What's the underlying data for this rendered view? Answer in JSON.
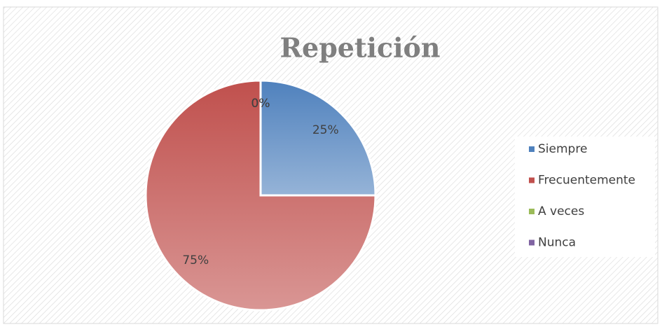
{
  "chart_data": {
    "type": "pie",
    "title": "Repetición",
    "categories": [
      "Siempre",
      "Frecuentemente",
      "A veces",
      "Nunca"
    ],
    "values": [
      25,
      75,
      0,
      0
    ],
    "value_labels": [
      "25%",
      "75%",
      "0%",
      "0%"
    ],
    "colors": [
      "#4f81bd",
      "#c0504d",
      "#9bbb59",
      "#8064a2"
    ],
    "legend": "right"
  }
}
